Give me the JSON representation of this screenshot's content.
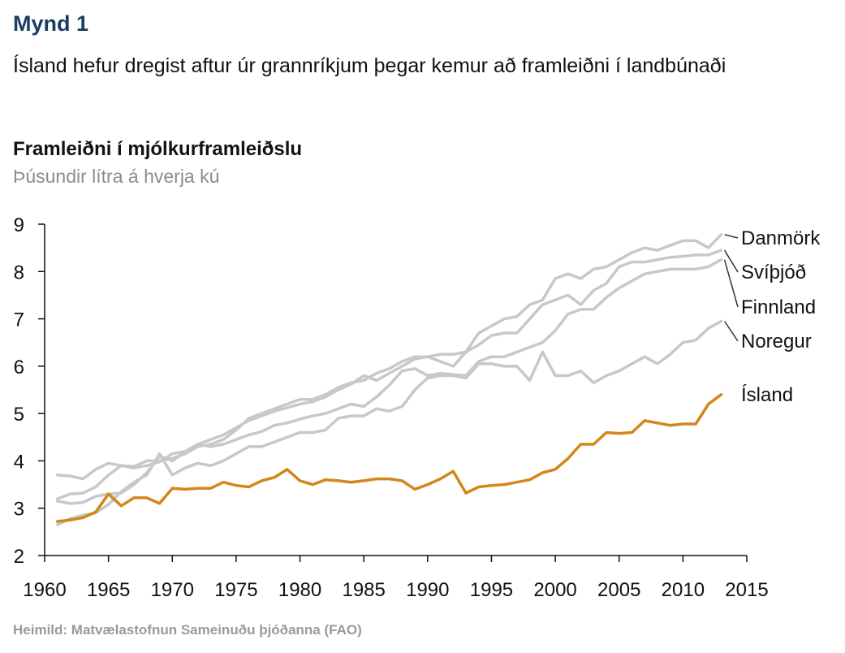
{
  "figure_label": "Mynd 1",
  "figure_title": "Ísland hefur dregist aftur úr grannríkjum þegar kemur að framleiðni í landbúnaði",
  "source": "Heimild: Matvælastofnun Sameinuðu þjóðanna (FAO)",
  "colors": {
    "highlight": "#d4861a",
    "other": "#c8c8c8",
    "axis": "#111111",
    "legend_leader": "#333333"
  },
  "chart_data": {
    "type": "line",
    "title": "Framleiðni í mjólkurframleiðslu",
    "subtitle": "Þúsundir lítra á hverja kú",
    "xlabel": "",
    "ylabel": "",
    "xlim": [
      1960,
      2015
    ],
    "ylim": [
      2,
      9
    ],
    "x_ticks": [
      1960,
      1965,
      1970,
      1975,
      1980,
      1985,
      1990,
      1995,
      2000,
      2005,
      2010,
      2015
    ],
    "y_ticks": [
      2,
      3,
      4,
      5,
      6,
      7,
      8,
      9
    ],
    "grid": false,
    "legend": "right-end labels",
    "x": [
      1961,
      1962,
      1963,
      1964,
      1965,
      1966,
      1967,
      1968,
      1969,
      1970,
      1971,
      1972,
      1973,
      1974,
      1975,
      1976,
      1977,
      1978,
      1979,
      1980,
      1981,
      1982,
      1983,
      1984,
      1985,
      1986,
      1987,
      1988,
      1989,
      1990,
      1991,
      1992,
      1993,
      1994,
      1995,
      1996,
      1997,
      1998,
      1999,
      2000,
      2001,
      2002,
      2003,
      2004,
      2005,
      2006,
      2007,
      2008,
      2009,
      2010,
      2011,
      2012,
      2013
    ],
    "series": [
      {
        "name": "Danmörk",
        "highlight": false,
        "values": [
          3.2,
          3.3,
          3.32,
          3.45,
          3.7,
          3.9,
          3.85,
          3.9,
          3.98,
          4.15,
          4.2,
          4.35,
          4.45,
          4.55,
          4.7,
          4.85,
          4.95,
          5.05,
          5.12,
          5.2,
          5.25,
          5.35,
          5.5,
          5.62,
          5.8,
          5.7,
          5.85,
          6.0,
          6.15,
          6.2,
          6.1,
          6.0,
          6.3,
          6.7,
          6.85,
          7.0,
          7.05,
          7.3,
          7.4,
          7.85,
          7.95,
          7.85,
          8.05,
          8.1,
          8.25,
          8.4,
          8.5,
          8.45,
          8.55,
          8.65,
          8.65,
          8.5,
          8.78
        ]
      },
      {
        "name": "Svíþjóð",
        "highlight": false,
        "values": [
          3.7,
          3.68,
          3.62,
          3.82,
          3.95,
          3.9,
          3.88,
          4.0,
          4.0,
          4.05,
          4.15,
          4.3,
          4.35,
          4.45,
          4.65,
          4.9,
          5.0,
          5.1,
          5.2,
          5.3,
          5.3,
          5.4,
          5.55,
          5.65,
          5.7,
          5.85,
          5.95,
          6.1,
          6.2,
          6.2,
          6.25,
          6.25,
          6.3,
          6.45,
          6.65,
          6.7,
          6.7,
          7.0,
          7.3,
          7.4,
          7.5,
          7.3,
          7.6,
          7.75,
          8.1,
          8.2,
          8.2,
          8.25,
          8.3,
          8.32,
          8.35,
          8.35,
          8.45
        ]
      },
      {
        "name": "Finnland",
        "highlight": false,
        "values": [
          3.15,
          3.1,
          3.12,
          3.25,
          3.3,
          3.32,
          3.5,
          3.75,
          4.1,
          4.0,
          4.18,
          4.35,
          4.3,
          4.35,
          4.45,
          4.55,
          4.62,
          4.75,
          4.8,
          4.88,
          4.95,
          5.0,
          5.1,
          5.2,
          5.15,
          5.35,
          5.6,
          5.9,
          5.95,
          5.8,
          5.85,
          5.82,
          5.8,
          6.1,
          6.2,
          6.2,
          6.3,
          6.4,
          6.5,
          6.75,
          7.1,
          7.2,
          7.2,
          7.45,
          7.65,
          7.8,
          7.95,
          8.0,
          8.05,
          8.05,
          8.05,
          8.1,
          8.25
        ]
      },
      {
        "name": "Noregur",
        "highlight": false,
        "values": [
          2.65,
          2.78,
          2.85,
          2.9,
          3.08,
          3.35,
          3.55,
          3.7,
          4.15,
          3.7,
          3.85,
          3.95,
          3.9,
          4.0,
          4.15,
          4.3,
          4.3,
          4.4,
          4.5,
          4.6,
          4.6,
          4.65,
          4.9,
          4.95,
          4.95,
          5.1,
          5.05,
          5.15,
          5.5,
          5.75,
          5.8,
          5.8,
          5.75,
          6.05,
          6.05,
          6.0,
          6.0,
          5.7,
          6.3,
          5.8,
          5.8,
          5.9,
          5.65,
          5.8,
          5.9,
          6.05,
          6.2,
          6.05,
          6.25,
          6.5,
          6.55,
          6.8,
          6.95
        ]
      },
      {
        "name": "Ísland",
        "highlight": true,
        "values": [
          2.72,
          2.75,
          2.8,
          2.92,
          3.3,
          3.05,
          3.22,
          3.22,
          3.1,
          3.42,
          3.4,
          3.42,
          3.42,
          3.55,
          3.48,
          3.45,
          3.58,
          3.65,
          3.82,
          3.58,
          3.5,
          3.6,
          3.58,
          3.55,
          3.58,
          3.62,
          3.62,
          3.58,
          3.4,
          3.5,
          3.62,
          3.78,
          3.32,
          3.45,
          3.48,
          3.5,
          3.55,
          3.6,
          3.75,
          3.82,
          4.05,
          4.35,
          4.35,
          4.6,
          4.58,
          4.6,
          4.85,
          4.8,
          4.75,
          4.78,
          4.78,
          5.2,
          5.4
        ]
      }
    ]
  }
}
